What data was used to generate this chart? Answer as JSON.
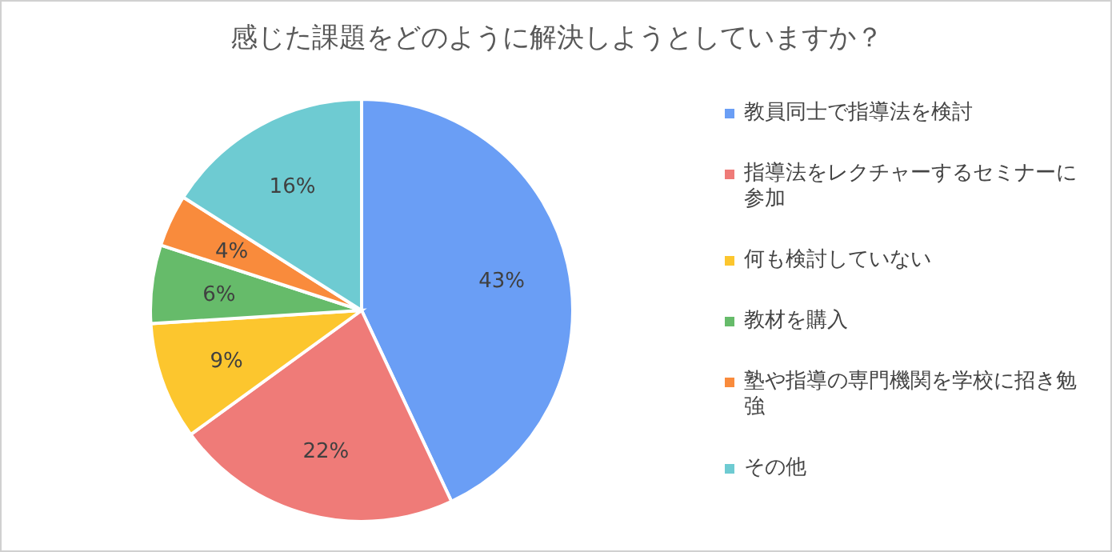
{
  "chart_data": {
    "type": "pie",
    "title": "感じた課題をどのように解決しようとしていますか？",
    "categories": [
      "教員同士で指導法を検討",
      "指導法をレクチャーするセミナーに参加",
      "何も検討していない",
      "教材を購入",
      "塾や指導の専門機関を学校に招き勉強",
      "その他"
    ],
    "values": [
      43,
      22,
      9,
      6,
      4,
      16
    ],
    "colors": [
      "#6a9ef5",
      "#ef7b78",
      "#fcc62e",
      "#66bb6a",
      "#f98b3c",
      "#6ecbd2"
    ],
    "value_labels": [
      "43%",
      "22%",
      "9%",
      "6%",
      "4%",
      "16%"
    ],
    "legend": "right"
  }
}
